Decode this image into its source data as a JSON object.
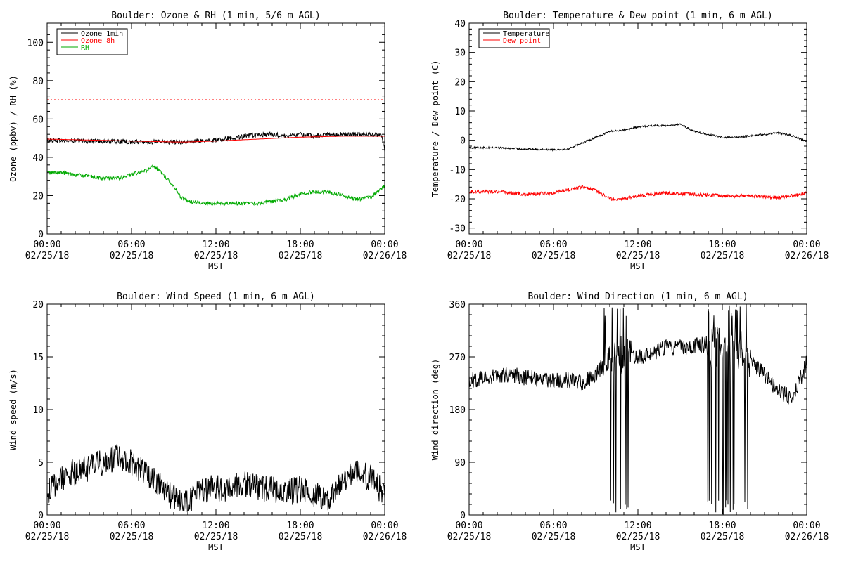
{
  "chart_data": [
    {
      "type": "line",
      "title": "Boulder: Ozone & RH (1 min, 5/6 m AGL)",
      "xlabel": "MST",
      "ylabel": "Ozone (ppbv) / RH (%)",
      "x_ticks": [
        [
          "00:00",
          "02/25/18"
        ],
        [
          "06:00",
          "02/25/18"
        ],
        [
          "12:00",
          "02/25/18"
        ],
        [
          "18:00",
          "02/25/18"
        ],
        [
          "00:00",
          "02/26/18"
        ]
      ],
      "xlim": [
        0,
        24
      ],
      "ylim": [
        0,
        110
      ],
      "y_ticks": [
        0,
        20,
        40,
        60,
        80,
        100
      ],
      "legend": "top-left",
      "hline": {
        "y": 70,
        "color": "#ff0000",
        "style": "dotted"
      },
      "series": [
        {
          "name": "Ozone 1min",
          "color": "#000000",
          "noise": 1.2,
          "x": [
            0,
            2,
            4,
            6,
            8,
            10,
            11,
            12,
            13,
            14,
            15,
            16,
            17,
            18,
            19,
            20,
            21,
            22,
            23,
            23.8,
            24
          ],
          "y": [
            49,
            48.5,
            48.5,
            48,
            48,
            48,
            48.5,
            49,
            50,
            51,
            51.5,
            52,
            51,
            52,
            51,
            52,
            52,
            52,
            52,
            51,
            44
          ]
        },
        {
          "name": "Ozone 8h",
          "color": "#ff0000",
          "noise": 0,
          "x": [
            0,
            3,
            6,
            9,
            10,
            12,
            15,
            18,
            21,
            24
          ],
          "y": [
            49.5,
            49,
            48.5,
            48,
            48,
            48.5,
            49.5,
            50.5,
            51,
            51
          ]
        },
        {
          "name": "RH",
          "color": "#00aa00",
          "noise": 1.0,
          "x": [
            0,
            1,
            2,
            3,
            4,
            5,
            6,
            7,
            7.5,
            8,
            9,
            9.5,
            10,
            11,
            12,
            13,
            14,
            15,
            16,
            17,
            18,
            19,
            20,
            21,
            22,
            23,
            24
          ],
          "y": [
            32,
            32,
            31,
            30,
            29,
            29,
            31,
            33,
            35,
            33,
            25,
            19,
            17,
            16,
            16,
            16,
            16,
            16,
            17,
            18,
            21,
            22,
            22,
            20,
            18,
            19,
            25
          ]
        }
      ]
    },
    {
      "type": "line",
      "title": "Boulder: Temperature & Dew point (1 min, 6 m AGL)",
      "xlabel": "MST",
      "ylabel": "Temperature / Dew point (C)",
      "x_ticks": [
        [
          "00:00",
          "02/25/18"
        ],
        [
          "06:00",
          "02/25/18"
        ],
        [
          "12:00",
          "02/25/18"
        ],
        [
          "18:00",
          "02/25/18"
        ],
        [
          "00:00",
          "02/26/18"
        ]
      ],
      "xlim": [
        0,
        24
      ],
      "ylim": [
        -32,
        40
      ],
      "y_ticks": [
        -30,
        -20,
        -10,
        0,
        10,
        20,
        30,
        40
      ],
      "legend": "top-left",
      "series": [
        {
          "name": "Temperature",
          "color": "#000000",
          "noise": 0.3,
          "x": [
            0,
            2,
            4,
            6,
            7,
            8,
            9,
            10,
            11,
            12,
            13,
            14,
            15,
            16,
            17,
            18,
            19,
            20,
            21,
            22,
            23,
            24
          ],
          "y": [
            -2.5,
            -2.5,
            -3,
            -3.2,
            -3,
            -1,
            1,
            3,
            3.5,
            4.5,
            5,
            5,
            5.5,
            3,
            2,
            1,
            1,
            1.5,
            2,
            2.5,
            1.5,
            -0.5
          ]
        },
        {
          "name": "Dew point",
          "color": "#ff0000",
          "noise": 0.6,
          "x": [
            0,
            2,
            4,
            6,
            7,
            8,
            9,
            10,
            11,
            12,
            14,
            16,
            18,
            20,
            22,
            23,
            24
          ],
          "y": [
            -17.5,
            -17.5,
            -18.5,
            -18,
            -17,
            -16,
            -17,
            -20,
            -20,
            -19,
            -18,
            -18.5,
            -19,
            -19,
            -19.5,
            -19,
            -18
          ]
        }
      ]
    },
    {
      "type": "line",
      "title": "Boulder: Wind Speed (1 min, 6 m AGL)",
      "xlabel": "MST",
      "ylabel": "Wind speed (m/s)",
      "x_ticks": [
        [
          "00:00",
          "02/25/18"
        ],
        [
          "06:00",
          "02/25/18"
        ],
        [
          "12:00",
          "02/25/18"
        ],
        [
          "18:00",
          "02/25/18"
        ],
        [
          "00:00",
          "02/26/18"
        ]
      ],
      "xlim": [
        0,
        24
      ],
      "ylim": [
        0,
        20
      ],
      "y_ticks": [
        0,
        5,
        10,
        15,
        20
      ],
      "series": [
        {
          "color": "#000000",
          "noise": 1.3,
          "x": [
            0,
            1,
            2,
            3,
            4,
            5,
            6,
            7,
            8,
            9,
            10,
            11,
            12,
            13,
            14,
            15,
            16,
            17,
            18,
            19,
            20,
            21,
            22,
            23,
            24
          ],
          "y": [
            2,
            3.5,
            4,
            4.5,
            5,
            5.5,
            5,
            4,
            3,
            1.5,
            1,
            2.5,
            2.5,
            2.5,
            3,
            2.5,
            2.5,
            2,
            2.5,
            2,
            1.5,
            3.5,
            4,
            3.5,
            2
          ]
        }
      ]
    },
    {
      "type": "line",
      "title": "Boulder: Wind Direction (1 min, 6 m AGL)",
      "xlabel": "MST",
      "ylabel": "Wind direction (deg)",
      "x_ticks": [
        [
          "00:00",
          "02/25/18"
        ],
        [
          "06:00",
          "02/25/18"
        ],
        [
          "12:00",
          "02/25/18"
        ],
        [
          "18:00",
          "02/25/18"
        ],
        [
          "00:00",
          "02/26/18"
        ]
      ],
      "xlim": [
        0,
        24
      ],
      "ylim": [
        0,
        360
      ],
      "y_ticks": [
        0,
        90,
        180,
        270,
        360
      ],
      "series": [
        {
          "color": "#000000",
          "noise": 14,
          "x": [
            0,
            1,
            2,
            3,
            4,
            5,
            6,
            7,
            8,
            9,
            10,
            11,
            12,
            13,
            14,
            15,
            16,
            17,
            18,
            19,
            20,
            21,
            22,
            23,
            24
          ],
          "y": [
            230,
            235,
            238,
            240,
            235,
            232,
            230,
            230,
            225,
            240,
            270,
            270,
            270,
            275,
            285,
            285,
            290,
            290,
            285,
            285,
            260,
            240,
            210,
            200,
            260
          ],
          "spikes": [
            [
              9.5,
              11.5
            ],
            [
              16.8,
              20
            ]
          ]
        }
      ]
    }
  ]
}
